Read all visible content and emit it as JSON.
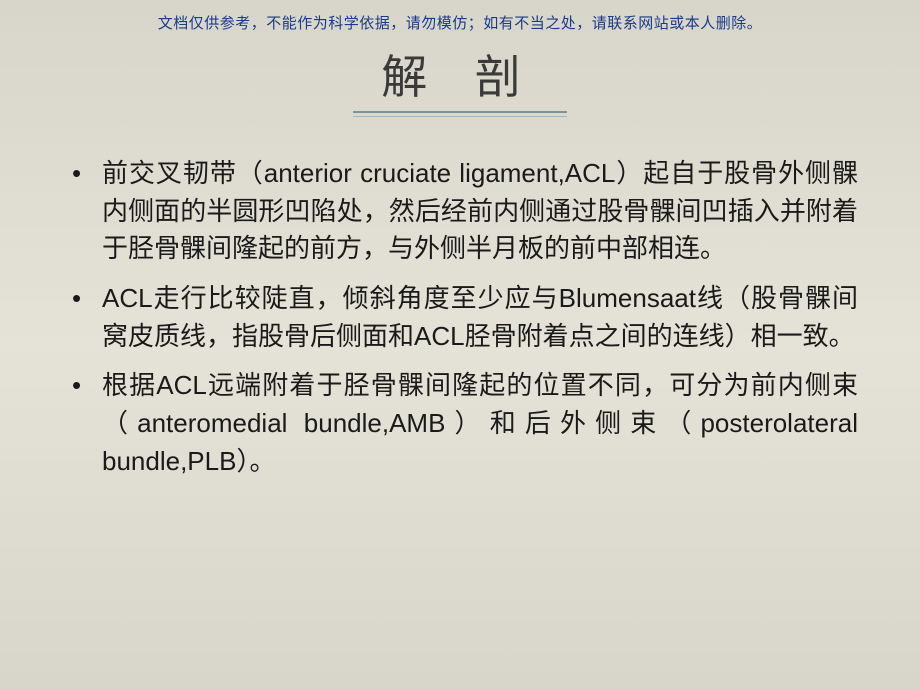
{
  "disclaimer": "文档仅供参考，不能作为科学依据，请勿模仿；如有不当之处，请联系网站或本人删除。",
  "title": "解 剖",
  "bullets": [
    "前交叉韧带（anterior cruciate ligament,ACL）起自于股骨外侧髁内侧面的半圆形凹陷处，然后经前内侧通过股骨髁间凹插入并附着于胫骨髁间隆起的前方，与外侧半月板的前中部相连。",
    "ACL走行比较陡直，倾斜角度至少应与Blumensaat线（股骨髁间窝皮质线，指股骨后侧面和ACL胫骨附着点之间的连线）相一致。",
    "根据ACL远端附着于胫骨髁间隆起的位置不同，可分为前内侧束（anteromedial bundle,AMB）和后外侧束（posterolateral bundle,PLB）。"
  ],
  "colors": {
    "background_gradient_start": "#d8d6ca",
    "background_gradient_mid": "#e5e3d7",
    "disclaimer_text": "#1a3a8a",
    "title_text": "#3a3a3a",
    "title_underline": "#7a9599",
    "body_text": "#1a1a1a"
  },
  "typography": {
    "disclaimer_fontsize": 15,
    "title_fontsize": 46,
    "body_fontsize": 26,
    "body_lineheight": 1.45
  }
}
